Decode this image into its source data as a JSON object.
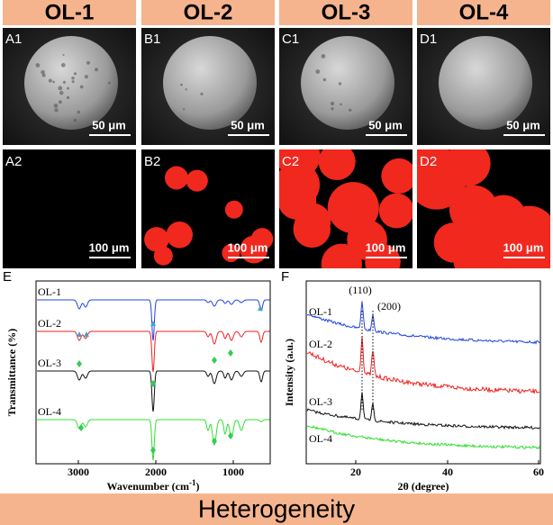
{
  "header": {
    "columns": [
      "OL-1",
      "OL-2",
      "OL-3",
      "OL-4"
    ]
  },
  "sem": {
    "labels": [
      "A1",
      "B1",
      "C1",
      "D1"
    ],
    "scale_bars": [
      "50 μm",
      "50 μm",
      "50 μm",
      "50 μm"
    ]
  },
  "fluorescence": {
    "labels": [
      "A2",
      "B2",
      "C2",
      "D2"
    ],
    "scale_bars": [
      "100 μm",
      "100 μm",
      "100 μm",
      "100 μm"
    ]
  },
  "panel_e": {
    "label": "E",
    "y_label": "Transmittance (%)",
    "x_label": "Wavenumber (cm",
    "x_label_sup": "-1",
    "x_label_end": ")",
    "x_ticks": [
      "3000",
      "2000",
      "1000"
    ],
    "series_labels": [
      "OL-1",
      "OL-2",
      "OL-3",
      "OL-4"
    ]
  },
  "panel_f": {
    "label": "F",
    "y_label": "Intensity (a.u.)",
    "x_label": "2θ (degree)",
    "x_ticks": [
      "20",
      "40",
      "60"
    ],
    "series_labels": [
      "OL-1",
      "OL-2",
      "OL-3",
      "OL-4"
    ],
    "peak_labels": [
      "(110)",
      "(200)"
    ]
  },
  "footer": "Heterogeneity"
}
